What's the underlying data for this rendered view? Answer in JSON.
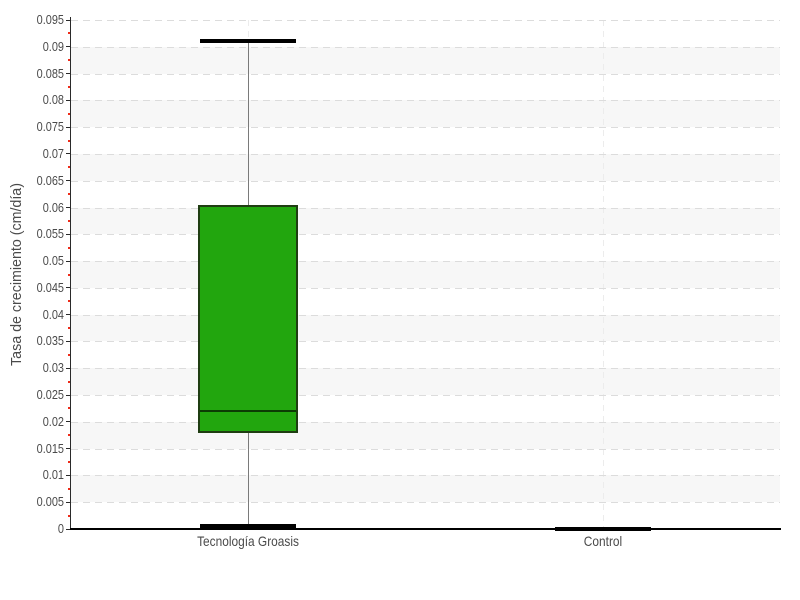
{
  "chart_data": {
    "type": "boxplot",
    "title": "",
    "xlabel": "",
    "ylabel": "Tasa de crecimiento (cm/día)",
    "categories": [
      "Tecnología Groasis",
      "Control"
    ],
    "series": [
      {
        "category": "Tecnología Groasis",
        "low": 0.0005,
        "q1": 0.018,
        "median": 0.022,
        "q3": 0.0605,
        "high": 0.091
      },
      {
        "category": "Control",
        "low": 0,
        "q1": 0,
        "median": 0,
        "q3": 0,
        "high": 0
      }
    ],
    "ylim": [
      0,
      0.095
    ],
    "ytick_step": 0.005,
    "ytick_labels": [
      "0",
      "0.005",
      "0.01",
      "0.015",
      "0.02",
      "0.025",
      "0.03",
      "0.035",
      "0.04",
      "0.045",
      "0.05",
      "0.055",
      "0.06",
      "0.065",
      "0.07",
      "0.075",
      "0.08",
      "0.085",
      "0.09",
      "0.095"
    ],
    "legend": "none",
    "grid": {
      "horizontal": "dashed",
      "vertical": "dashed-at-category-centers",
      "alternating_bands": true,
      "minor_ticks": "red"
    }
  },
  "style": {
    "box_fill": "#22a60e",
    "box_border": "#1f3d12",
    "median_color": "#0c3b04",
    "whisker_color": "#7a7a7a",
    "cap_color": "#000000",
    "axis_color": "#000000",
    "spine_color": "#2a2a2a",
    "grid_color": "#dcdcdc",
    "vgrid_color": "#ececec",
    "band_color": "#f7f7f7",
    "minor_tick_color": "#ee2b18",
    "label_color": "#4a4a4a"
  }
}
